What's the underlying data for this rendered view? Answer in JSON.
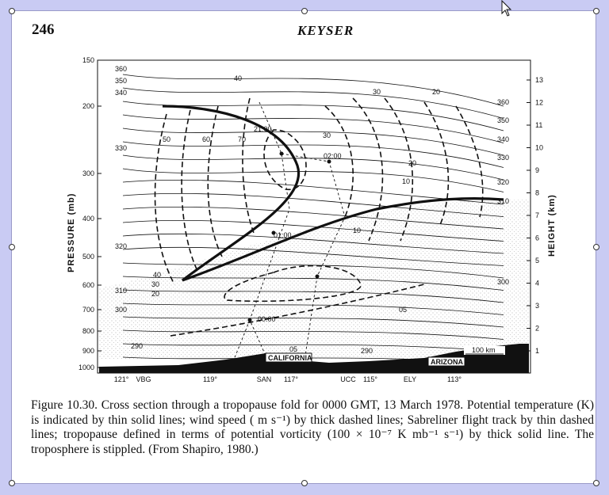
{
  "header": {
    "page_number": "246",
    "running_title": "KEYSER"
  },
  "figure": {
    "y_axis_left_label": "PRESSURE (mb)",
    "y_axis_right_label": "HEIGHT (km)",
    "pressure_ticks": [
      "150",
      "200",
      "300",
      "400",
      "500",
      "600",
      "700",
      "800",
      "900",
      "1000"
    ],
    "height_ticks": [
      "13",
      "12",
      "11",
      "10",
      "9",
      "8",
      "7",
      "6",
      "5",
      "4",
      "3",
      "2",
      "1"
    ],
    "x_ticks": [
      "121°",
      "VBG",
      "119°",
      "SAN",
      "117°",
      "UCC",
      "115°",
      "ELY",
      "113°"
    ],
    "theta_labels_left": [
      "360",
      "350",
      "340",
      "330",
      "320",
      "310",
      "300",
      "290"
    ],
    "theta_labels_right": [
      "360",
      "350",
      "340",
      "330",
      "320",
      "310",
      "300"
    ],
    "wind_labels": [
      "40",
      "50",
      "60",
      "70",
      "30",
      "20",
      "40",
      "30",
      "20",
      "10",
      "30",
      "20",
      "10",
      "05"
    ],
    "track_times": [
      "21:00",
      "02:00",
      "01:00",
      "00:00"
    ],
    "place_labels": [
      "CALIFORNIA",
      "ARIZONA"
    ],
    "scale_bar": "100 km",
    "inner_labels": [
      "290",
      "05"
    ]
  },
  "caption": {
    "text": "Figure 10.30.  Cross section through a tropopause fold for 0000 GMT, 13 March 1978. Potential temperature (K) is indicated by thin solid lines; wind speed ( m s⁻¹) by thick dashed lines; Sabreliner flight track by thin dashed lines; tropopause defined in terms of potential vorticity (100 × 10⁻⁷ K mb⁻¹ s⁻¹) by thick solid line. The troposphere is stippled. (From Shapiro, 1980.)"
  }
}
